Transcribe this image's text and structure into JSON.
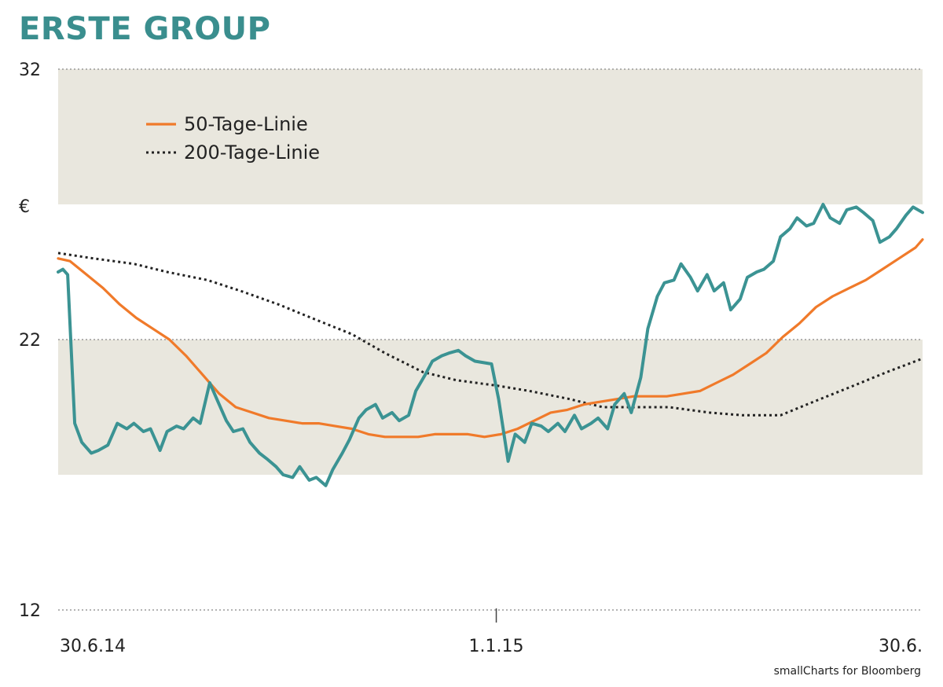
{
  "chart_data": {
    "type": "line",
    "title": "ERSTE GROUP",
    "ylabel": "€",
    "source": "smallCharts for Bloomberg",
    "ylim": [
      12,
      32
    ],
    "yticks": [
      32,
      22,
      12
    ],
    "xlim": [
      "2014-06-30",
      "2015-06-30"
    ],
    "xticks": [
      {
        "date": "2014-06-30",
        "label": "30.6.14"
      },
      {
        "date": "2015-01-01",
        "label": "1.1.15"
      },
      {
        "date": "2015-06-30",
        "label": "30.6."
      }
    ],
    "shaded_bands": [
      [
        27,
        32
      ],
      [
        17,
        22
      ]
    ],
    "grid": "dotted horizontal at y ticks",
    "legend_position": "top-left",
    "colors": {
      "price": "#3b9393",
      "ma50": "#f07a2a",
      "ma200": "#222222",
      "band": "#e9e7de",
      "title": "#3a8e8e"
    },
    "series": [
      {
        "key": "price",
        "x": [
          "2014-06-30",
          "2014-07-02",
          "2014-07-04",
          "2014-07-07",
          "2014-07-10",
          "2014-07-14",
          "2014-07-17",
          "2014-07-21",
          "2014-07-25",
          "2014-07-29",
          "2014-08-01",
          "2014-08-05",
          "2014-08-08",
          "2014-08-12",
          "2014-08-15",
          "2014-08-19",
          "2014-08-22",
          "2014-08-26",
          "2014-08-29",
          "2014-09-02",
          "2014-09-05",
          "2014-09-09",
          "2014-09-12",
          "2014-09-16",
          "2014-09-19",
          "2014-09-23",
          "2014-09-26",
          "2014-09-30",
          "2014-10-03",
          "2014-10-07",
          "2014-10-10",
          "2014-10-14",
          "2014-10-17",
          "2014-10-21",
          "2014-10-24",
          "2014-10-28",
          "2014-10-31",
          "2014-11-04",
          "2014-11-07",
          "2014-11-11",
          "2014-11-14",
          "2014-11-18",
          "2014-11-21",
          "2014-11-25",
          "2014-11-28",
          "2014-12-02",
          "2014-12-05",
          "2014-12-09",
          "2014-12-12",
          "2014-12-16",
          "2014-12-19",
          "2014-12-23",
          "2014-12-30",
          "2015-01-02",
          "2015-01-06",
          "2015-01-09",
          "2015-01-13",
          "2015-01-16",
          "2015-01-20",
          "2015-01-23",
          "2015-01-27",
          "2015-01-30",
          "2015-02-03",
          "2015-02-06",
          "2015-02-10",
          "2015-02-13",
          "2015-02-17",
          "2015-02-20",
          "2015-02-24",
          "2015-02-27",
          "2015-03-03",
          "2015-03-06",
          "2015-03-10",
          "2015-03-13",
          "2015-03-17",
          "2015-03-20",
          "2015-03-24",
          "2015-03-27",
          "2015-03-31",
          "2015-04-03",
          "2015-04-07",
          "2015-04-10",
          "2015-04-14",
          "2015-04-17",
          "2015-04-21",
          "2015-04-24",
          "2015-04-28",
          "2015-05-01",
          "2015-05-05",
          "2015-05-08",
          "2015-05-12",
          "2015-05-15",
          "2015-05-19",
          "2015-05-22",
          "2015-05-26",
          "2015-05-29",
          "2015-06-02",
          "2015-06-05",
          "2015-06-09",
          "2015-06-12",
          "2015-06-16",
          "2015-06-19",
          "2015-06-23",
          "2015-06-26",
          "2015-06-30"
        ],
        "values": [
          24.5,
          24.6,
          24.4,
          18.9,
          18.2,
          17.8,
          17.9,
          18.1,
          18.9,
          18.7,
          18.9,
          18.6,
          18.7,
          17.9,
          18.6,
          18.8,
          18.7,
          19.1,
          18.9,
          20.4,
          19.8,
          19.0,
          18.6,
          18.7,
          18.2,
          17.8,
          17.6,
          17.3,
          17.0,
          16.9,
          17.3,
          16.8,
          16.9,
          16.6,
          17.2,
          17.8,
          18.3,
          19.1,
          19.4,
          19.6,
          19.1,
          19.3,
          19.0,
          19.2,
          20.1,
          20.7,
          21.2,
          21.4,
          21.5,
          21.6,
          21.4,
          21.2,
          21.1,
          19.8,
          17.5,
          18.5,
          18.2,
          18.9,
          18.8,
          18.6,
          18.9,
          18.6,
          19.2,
          18.7,
          18.9,
          19.1,
          18.7,
          19.6,
          20.0,
          19.3,
          20.6,
          22.4,
          23.6,
          24.1,
          24.2,
          24.8,
          24.3,
          23.8,
          24.4,
          23.8,
          24.1,
          23.1,
          23.5,
          24.3,
          24.5,
          24.6,
          24.9,
          25.8,
          26.1,
          26.5,
          26.2,
          26.3,
          27.0,
          26.5,
          26.3,
          26.8,
          26.9,
          26.7,
          26.4,
          25.6,
          25.8,
          26.1,
          26.6,
          26.9,
          26.7
        ]
      },
      {
        "key": "ma50",
        "name": "50-Tage-Linie",
        "x": [
          "2014-06-30",
          "2014-07-05",
          "2014-07-12",
          "2014-07-19",
          "2014-07-26",
          "2014-08-02",
          "2014-08-09",
          "2014-08-16",
          "2014-08-23",
          "2014-08-30",
          "2014-09-06",
          "2014-09-13",
          "2014-09-20",
          "2014-09-27",
          "2014-10-04",
          "2014-10-11",
          "2014-10-18",
          "2014-10-25",
          "2014-11-01",
          "2014-11-08",
          "2014-11-15",
          "2014-11-22",
          "2014-11-29",
          "2014-12-06",
          "2014-12-13",
          "2014-12-20",
          "2014-12-27",
          "2015-01-03",
          "2015-01-10",
          "2015-01-17",
          "2015-01-24",
          "2015-01-31",
          "2015-02-07",
          "2015-02-14",
          "2015-02-21",
          "2015-02-28",
          "2015-03-07",
          "2015-03-14",
          "2015-03-21",
          "2015-03-28",
          "2015-04-04",
          "2015-04-11",
          "2015-04-18",
          "2015-04-25",
          "2015-05-02",
          "2015-05-09",
          "2015-05-16",
          "2015-05-23",
          "2015-05-30",
          "2015-06-06",
          "2015-06-13",
          "2015-06-20",
          "2015-06-27",
          "2015-06-30"
        ],
        "values": [
          25.0,
          24.9,
          24.4,
          23.9,
          23.3,
          22.8,
          22.4,
          22.0,
          21.4,
          20.7,
          20.0,
          19.5,
          19.3,
          19.1,
          19.0,
          18.9,
          18.9,
          18.8,
          18.7,
          18.5,
          18.4,
          18.4,
          18.4,
          18.5,
          18.5,
          18.5,
          18.4,
          18.5,
          18.7,
          19.0,
          19.3,
          19.4,
          19.6,
          19.7,
          19.8,
          19.9,
          19.9,
          19.9,
          20.0,
          20.1,
          20.4,
          20.7,
          21.1,
          21.5,
          22.1,
          22.6,
          23.2,
          23.6,
          23.9,
          24.2,
          24.6,
          25.0,
          25.4,
          25.7
        ]
      },
      {
        "key": "ma200",
        "name": "200-Tage-Linie",
        "x": [
          "2014-06-30",
          "2014-07-15",
          "2014-08-01",
          "2014-08-15",
          "2014-09-01",
          "2014-09-15",
          "2014-10-01",
          "2014-10-15",
          "2014-11-01",
          "2014-11-15",
          "2014-12-01",
          "2014-12-15",
          "2015-01-01",
          "2015-01-15",
          "2015-02-01",
          "2015-02-15",
          "2015-03-01",
          "2015-03-15",
          "2015-04-01",
          "2015-04-15",
          "2015-05-01",
          "2015-05-15",
          "2015-06-01",
          "2015-06-15",
          "2015-06-30"
        ],
        "values": [
          25.2,
          25.0,
          24.8,
          24.5,
          24.2,
          23.8,
          23.3,
          22.8,
          22.2,
          21.5,
          20.8,
          20.5,
          20.3,
          20.1,
          19.8,
          19.5,
          19.5,
          19.5,
          19.3,
          19.2,
          19.2,
          19.7,
          20.3,
          20.8,
          21.3
        ]
      }
    ]
  }
}
